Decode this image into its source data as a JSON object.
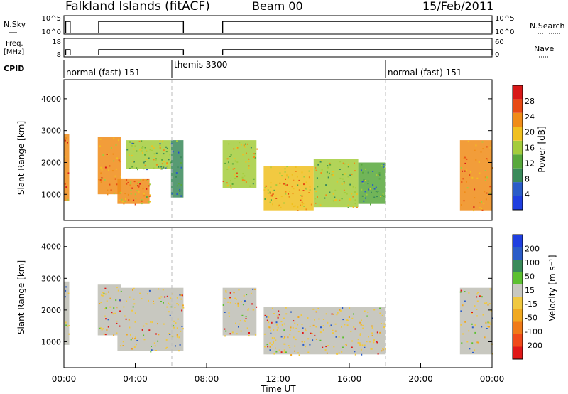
{
  "header": {
    "station": "Falkland Islands (fitACF)",
    "beam": "Beam 00",
    "date": "15/Feb/2011"
  },
  "strips": {
    "nsky": {
      "label": "N.Sky",
      "ticks": [
        "10^5",
        "10^0"
      ],
      "right_label": "N.Search",
      "right_ticks": [
        "10^5",
        "10^0"
      ],
      "segments": [
        [
          0.1,
          0.35
        ],
        [
          1.95,
          6.7
        ],
        [
          8.9,
          24.0
        ]
      ]
    },
    "freq": {
      "label_line1": "Freq.",
      "label_line2": "[MHz]",
      "ticks": [
        "18",
        "8"
      ],
      "right_label": "Nave",
      "right_ticks": [
        "60",
        "0"
      ],
      "segments": [
        [
          0.1,
          0.35
        ],
        [
          1.95,
          6.7
        ],
        [
          8.9,
          24.0
        ]
      ]
    },
    "cpid": {
      "label": "CPID",
      "modes": [
        {
          "label": "normal (fast) 151",
          "start": 0.0
        },
        {
          "label": "themis 3300",
          "start": 6.0
        },
        {
          "label": "normal (fast) 151",
          "start": 18.0
        }
      ]
    }
  },
  "chart_data": [
    {
      "type": "heatmap",
      "title": "",
      "ylabel": "Slant Range [km]",
      "xlabel": "",
      "xlim": [
        0,
        24
      ],
      "ylim": [
        180,
        4600
      ],
      "yticks": [
        "1000",
        "2000",
        "3000",
        "4000"
      ],
      "colorbar": {
        "label": "Power [dB]",
        "ticks": [
          "4",
          "8",
          "12",
          "16",
          "20",
          "24",
          "28"
        ],
        "range": [
          0,
          32
        ],
        "colors": [
          "#1f3fe0",
          "#2a5cc8",
          "#3a8a5a",
          "#58a83c",
          "#a4cc3c",
          "#f0c020",
          "#f08c18",
          "#e84a14",
          "#d81818"
        ]
      },
      "blocks": [
        {
          "t0": 0.0,
          "t1": 0.3,
          "r0": 800,
          "r1": 2900,
          "level": 0.75
        },
        {
          "t0": 1.9,
          "t1": 3.2,
          "r0": 1000,
          "r1": 2800,
          "level": 0.72
        },
        {
          "t0": 3.0,
          "t1": 4.8,
          "r0": 700,
          "r1": 1500,
          "level": 0.68
        },
        {
          "t0": 3.5,
          "t1": 6.0,
          "r0": 1800,
          "r1": 2700,
          "level": 0.45
        },
        {
          "t0": 6.0,
          "t1": 6.7,
          "r0": 900,
          "r1": 2700,
          "level": 0.25
        },
        {
          "t0": 8.9,
          "t1": 10.8,
          "r0": 1200,
          "r1": 2700,
          "level": 0.55
        },
        {
          "t0": 11.2,
          "t1": 14.0,
          "r0": 500,
          "r1": 1900,
          "level": 0.62
        },
        {
          "t0": 14.0,
          "t1": 16.5,
          "r0": 600,
          "r1": 2100,
          "level": 0.48
        },
        {
          "t0": 16.5,
          "t1": 18.0,
          "r0": 700,
          "r1": 2000,
          "level": 0.35
        },
        {
          "t0": 22.2,
          "t1": 24.0,
          "r0": 500,
          "r1": 2700,
          "level": 0.7
        }
      ]
    },
    {
      "type": "heatmap",
      "title": "",
      "ylabel": "Slant Range [km]",
      "xlabel": "Time UT",
      "xlim": [
        0,
        24
      ],
      "ylim": [
        180,
        4600
      ],
      "yticks": [
        "1000",
        "2000",
        "3000",
        "4000"
      ],
      "xticks": [
        "00:00",
        "04:00",
        "08:00",
        "12:00",
        "16:00",
        "20:00",
        "00:00"
      ],
      "colorbar": {
        "label": "Velocity [m s⁻¹]",
        "ticks": [
          "-200",
          "-100",
          "-50",
          "-15",
          "15",
          "50",
          "100",
          "200"
        ],
        "colors": [
          "#e01818",
          "#f04a1a",
          "#f07a18",
          "#f0a820",
          "#f0c840",
          "#c8c8c0",
          "#5cc030",
          "#3a8a5a",
          "#2a5cc8",
          "#1f3fe0"
        ]
      },
      "blocks": [
        {
          "t0": 0.0,
          "t1": 0.3,
          "r0": 900,
          "r1": 2900,
          "level": 0.4
        },
        {
          "t0": 1.9,
          "t1": 3.2,
          "r0": 1200,
          "r1": 2800,
          "level": 0.5
        },
        {
          "t0": 3.0,
          "t1": 6.7,
          "r0": 700,
          "r1": 2700,
          "level": 0.5
        },
        {
          "t0": 8.9,
          "t1": 10.8,
          "r0": 1200,
          "r1": 2700,
          "level": 0.5
        },
        {
          "t0": 11.2,
          "t1": 18.0,
          "r0": 600,
          "r1": 2100,
          "level": 0.5
        },
        {
          "t0": 22.2,
          "t1": 24.0,
          "r0": 600,
          "r1": 2700,
          "level": 0.5
        }
      ]
    }
  ]
}
